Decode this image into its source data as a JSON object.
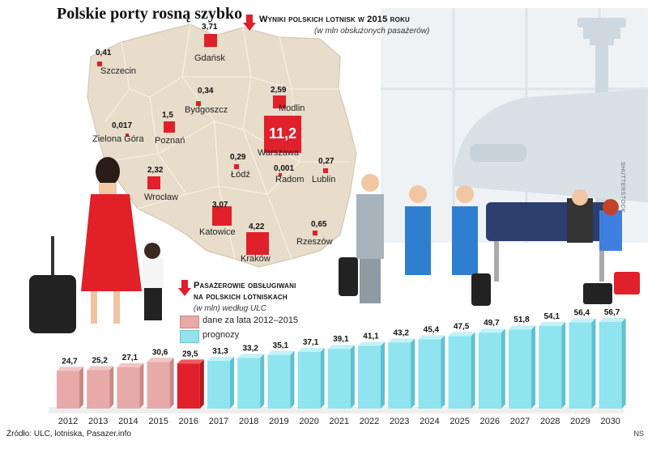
{
  "title": "Polskie porty rosną szybko",
  "airports_section": {
    "heading": "Wyniki polskich lotnisk w 2015 roku",
    "subheading": "(w mln obsłużonych pasażerów)"
  },
  "passengers_section": {
    "heading_line1": "Pasażerowie obsługiwani",
    "heading_line2": "na polskich lotniskach",
    "subheading": "(w mln) według ULC",
    "legend": [
      {
        "label": "dane za lata 2012–2015",
        "color": "#e8a9a9"
      },
      {
        "label": "prognozy",
        "color": "#8fe4ef"
      }
    ]
  },
  "colors": {
    "historical": "#e8a9a9",
    "current": "#e0202a",
    "forecast": "#8fe4ef",
    "map": "#e8dccb",
    "marker": "#e0202a"
  },
  "airports": [
    {
      "city": "Szczecin",
      "value": "0,41"
    },
    {
      "city": "Gdańsk",
      "value": "3,71"
    },
    {
      "city": "Bydgoszcz",
      "value": "0,34"
    },
    {
      "city": "Modlin",
      "value": "2,59"
    },
    {
      "city": "Poznań",
      "value": "1,5"
    },
    {
      "city": "Zielona Góra",
      "value": "0,017"
    },
    {
      "city": "Warszawa",
      "value": "11,2"
    },
    {
      "city": "Łódź",
      "value": "0,29"
    },
    {
      "city": "Radom",
      "value": "0,001"
    },
    {
      "city": "Lublin",
      "value": "0,27"
    },
    {
      "city": "Wrocław",
      "value": "2,32"
    },
    {
      "city": "Katowice",
      "value": "3,07"
    },
    {
      "city": "Kraków",
      "value": "4,22"
    },
    {
      "city": "Rzeszów",
      "value": "0,65"
    }
  ],
  "chart_data": {
    "type": "bar",
    "title": "Pasażerowie obsługiwani na polskich lotniskach",
    "categories": [
      "2012",
      "2013",
      "2014",
      "2015",
      "2016",
      "2017",
      "2018",
      "2019",
      "2020",
      "2021",
      "2022",
      "2023",
      "2024",
      "2025",
      "2026",
      "2027",
      "2028",
      "2029",
      "2030"
    ],
    "values": [
      24.7,
      25.2,
      27.1,
      30.6,
      29.5,
      31.3,
      33.2,
      35.1,
      37.1,
      39.1,
      41.1,
      43.2,
      45.4,
      47.5,
      49.7,
      51.8,
      54.1,
      56.4,
      56.7
    ],
    "labels": [
      "24,7",
      "25,2",
      "27,1",
      "30,6",
      "29,5",
      "31,3",
      "33,2",
      "35,1",
      "37,1",
      "39,1",
      "41,1",
      "43,2",
      "45,4",
      "47,5",
      "49,7",
      "51,8",
      "54,1",
      "56,4",
      "56,7"
    ],
    "status": [
      "historical",
      "historical",
      "historical",
      "historical",
      "current",
      "forecast",
      "forecast",
      "forecast",
      "forecast",
      "forecast",
      "forecast",
      "forecast",
      "forecast",
      "forecast",
      "forecast",
      "forecast",
      "forecast",
      "forecast",
      "forecast"
    ],
    "ylim": [
      0,
      60
    ],
    "grid": false,
    "legend": "left, above bars"
  },
  "source": "Źródło: ULC, lotniska, Pasazer.info",
  "credit": "NS",
  "photo_credit": "SHUTTERSTOCK"
}
